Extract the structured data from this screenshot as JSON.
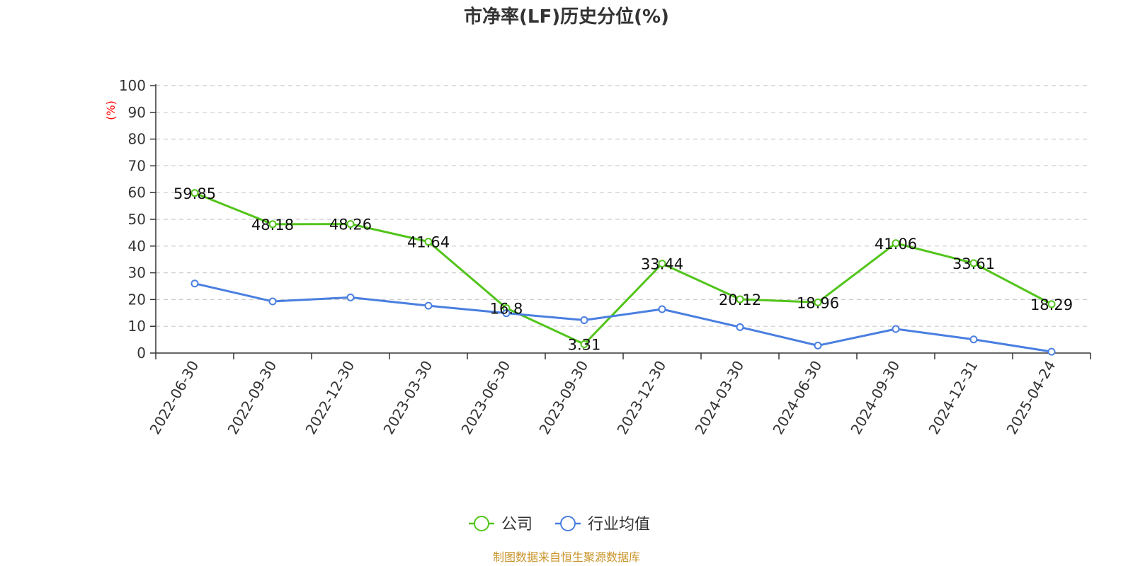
{
  "chart_data": {
    "type": "line",
    "title": "市净率(LF)历史分位(%)",
    "ylabel": "(%)",
    "ylim": [
      0,
      100
    ],
    "yticks": [
      0,
      10,
      20,
      30,
      40,
      50,
      60,
      70,
      80,
      90,
      100
    ],
    "grid": true,
    "legend_position": "bottom",
    "categories": [
      "2022-06-30",
      "2022-09-30",
      "2022-12-30",
      "2023-03-30",
      "2023-06-30",
      "2023-09-30",
      "2023-12-30",
      "2024-03-30",
      "2024-06-30",
      "2024-09-30",
      "2024-12-31",
      "2025-04-24"
    ],
    "series": [
      {
        "name": "公司",
        "color": "#52c41a",
        "show_labels": true,
        "values": [
          59.85,
          48.18,
          48.26,
          41.64,
          16.8,
          3.31,
          33.44,
          20.12,
          18.96,
          41.06,
          33.61,
          18.29
        ]
      },
      {
        "name": "行业均值",
        "color": "#4a7fe0",
        "show_labels": false,
        "values": [
          26.0,
          19.3,
          20.8,
          17.7,
          14.9,
          12.3,
          16.4,
          9.7,
          2.8,
          9.0,
          5.1,
          0.5
        ]
      }
    ],
    "ylabel_color": "#ff0000",
    "axis_color": "#333333",
    "grid_color": "#cccccc"
  },
  "footer": {
    "source": "制图数据来自恒生聚源数据库",
    "source_color": "#c9942a"
  }
}
